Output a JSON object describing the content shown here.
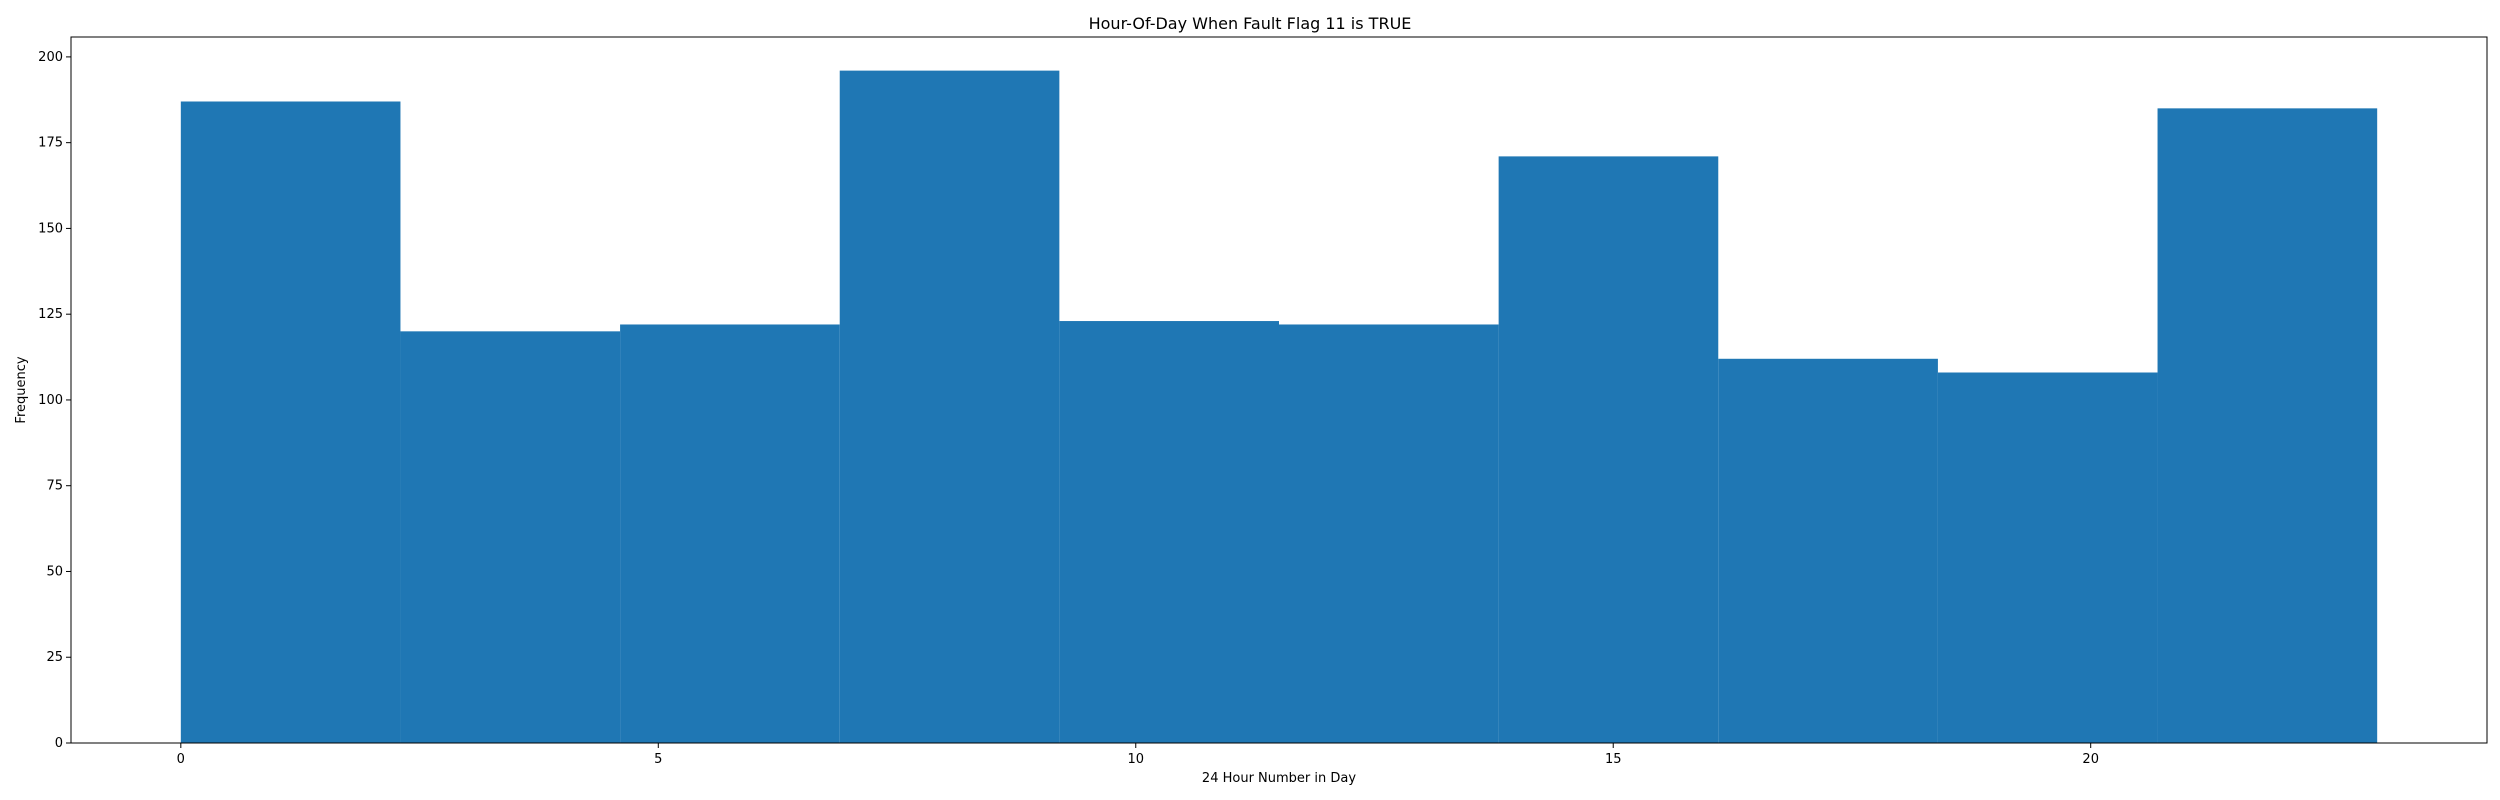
{
  "chart_data": {
    "type": "bar",
    "title": "Hour-Of-Day When Fault Flag 11 is TRUE",
    "xlabel": "24 Hour Number in Day",
    "ylabel": "Frequency",
    "bins": [
      {
        "start": 0,
        "end": 2.3,
        "value": 187
      },
      {
        "start": 2.3,
        "end": 4.6,
        "value": 120
      },
      {
        "start": 4.6,
        "end": 6.9,
        "value": 122
      },
      {
        "start": 6.9,
        "end": 9.2,
        "value": 196
      },
      {
        "start": 9.2,
        "end": 11.5,
        "value": 123
      },
      {
        "start": 11.5,
        "end": 13.8,
        "value": 122
      },
      {
        "start": 13.8,
        "end": 16.1,
        "value": 171
      },
      {
        "start": 16.1,
        "end": 18.4,
        "value": 112
      },
      {
        "start": 18.4,
        "end": 20.7,
        "value": 108
      },
      {
        "start": 20.7,
        "end": 23.0,
        "value": 185
      }
    ],
    "xlim": [
      -1.15,
      24.15
    ],
    "ylim": [
      0,
      205.8
    ],
    "xticks": [
      0,
      5,
      10,
      15,
      20
    ],
    "yticks": [
      0,
      25,
      50,
      75,
      100,
      125,
      150,
      175,
      200
    ],
    "bar_color": "#1f77b4",
    "grid": false,
    "legend": "none"
  }
}
